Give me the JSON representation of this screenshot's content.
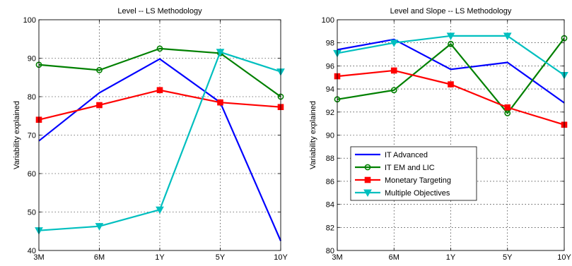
{
  "chart_data": [
    {
      "type": "line",
      "title": "Level -- LS Methodology",
      "xlabel": "",
      "ylabel": "Variability explained",
      "categories": [
        "3M",
        "6M",
        "1Y",
        "5Y",
        "10Y"
      ],
      "ylim": [
        40,
        100
      ],
      "yticks": [
        40,
        50,
        60,
        70,
        80,
        90,
        100
      ],
      "grid": true,
      "legend": null,
      "series": [
        {
          "name": "IT Advanced",
          "color": "#0000ff",
          "marker": "none",
          "values": [
            68.5,
            81.0,
            89.8,
            78.5,
            42.5
          ]
        },
        {
          "name": "IT EM and LIC",
          "color": "#008000",
          "marker": "circle",
          "values": [
            88.3,
            86.9,
            92.5,
            91.3,
            80.0
          ]
        },
        {
          "name": "Monetary Targeting",
          "color": "#ff0000",
          "marker": "square",
          "values": [
            74.0,
            77.8,
            81.7,
            78.5,
            77.3
          ]
        },
        {
          "name": "Multiple Objectives",
          "color": "#00bfbf",
          "marker": "triangle-down",
          "values": [
            45.2,
            46.3,
            50.6,
            91.6,
            86.5
          ]
        }
      ]
    },
    {
      "type": "line",
      "title": "Level and Slope -- LS Methodology",
      "xlabel": "",
      "ylabel": "Variability explained",
      "categories": [
        "3M",
        "6M",
        "1Y",
        "5Y",
        "10Y"
      ],
      "ylim": [
        80,
        100
      ],
      "yticks": [
        80,
        82,
        84,
        86,
        88,
        90,
        92,
        94,
        96,
        98,
        100
      ],
      "grid": true,
      "legend": "center-left",
      "series": [
        {
          "name": "IT Advanced",
          "color": "#0000ff",
          "marker": "none",
          "values": [
            97.4,
            98.3,
            95.7,
            96.3,
            92.8
          ]
        },
        {
          "name": "IT EM and LIC",
          "color": "#008000",
          "marker": "circle",
          "values": [
            93.1,
            93.9,
            97.9,
            91.9,
            98.4
          ]
        },
        {
          "name": "Monetary Targeting",
          "color": "#ff0000",
          "marker": "square",
          "values": [
            95.1,
            95.6,
            94.4,
            92.4,
            90.9
          ]
        },
        {
          "name": "Multiple Objectives",
          "color": "#00bfbf",
          "marker": "triangle-down",
          "values": [
            97.1,
            98.0,
            98.6,
            98.6,
            95.2
          ]
        }
      ]
    }
  ]
}
